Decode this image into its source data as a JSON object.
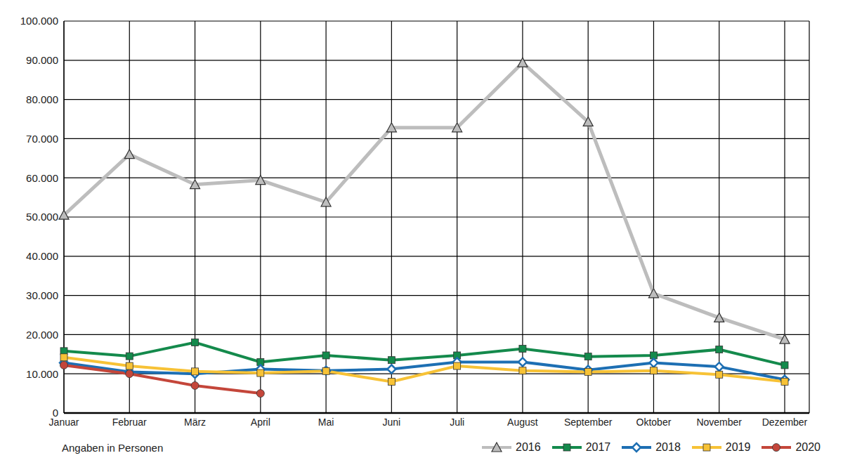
{
  "chart_data": {
    "type": "line",
    "y_label": "Angaben in Personen",
    "categories": [
      "Januar",
      "Februar",
      "März",
      "April",
      "Mai",
      "Juni",
      "Juli",
      "August",
      "September",
      "Oktober",
      "November",
      "Dezember"
    ],
    "series": [
      {
        "name": "2016",
        "color": "#bdbdbd",
        "marker": "triangle",
        "values": [
          50500,
          66000,
          58300,
          59400,
          53800,
          72800,
          72800,
          89400,
          74300,
          30500,
          24300,
          18800
        ]
      },
      {
        "name": "2017",
        "color": "#148a4c",
        "marker": "square",
        "values": [
          15800,
          14500,
          18000,
          13000,
          14700,
          13500,
          14700,
          16400,
          14400,
          14700,
          16200,
          12200
        ]
      },
      {
        "name": "2018",
        "color": "#1d6fb3",
        "marker": "diamond",
        "values": [
          12800,
          10500,
          10000,
          11200,
          10800,
          11200,
          13000,
          13000,
          11000,
          12800,
          11800,
          8500
        ]
      },
      {
        "name": "2019",
        "color": "#f7c236",
        "marker": "square",
        "values": [
          14200,
          12000,
          10600,
          10200,
          10700,
          8000,
          12000,
          10800,
          10500,
          10800,
          9800,
          8000
        ]
      },
      {
        "name": "2020",
        "color": "#c4463a",
        "marker": "circle",
        "values": [
          12200,
          10000,
          7000,
          5000,
          null,
          null,
          null,
          null,
          null,
          null,
          null,
          null
        ]
      }
    ],
    "ylim": [
      0,
      100000
    ],
    "yticks": [
      0,
      {
        "value": 10000,
        "label": "10.000"
      },
      {
        "value": 20000,
        "label": "20.000"
      },
      {
        "value": 30000,
        "label": "30.000"
      },
      {
        "value": 40000,
        "label": "40.000"
      },
      {
        "value": 50000,
        "label": "50.000"
      },
      {
        "value": 60000,
        "label": "60.000"
      },
      {
        "value": 70000,
        "label": "70.000"
      },
      {
        "value": 80000,
        "label": "80.000"
      },
      {
        "value": 90000,
        "label": "90.000"
      },
      {
        "value": 100000,
        "label": "100.000"
      }
    ],
    "grid": true,
    "legend": "lower right"
  }
}
